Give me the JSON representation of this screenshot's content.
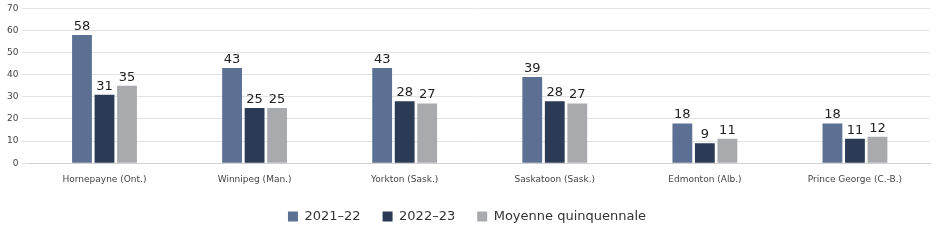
{
  "chart_data": {
    "type": "bar",
    "categories": [
      "Hornepayne (Ont.)",
      "Winnipeg (Man.)",
      "Yorkton (Sask.)",
      "Saskatoon (Sask.)",
      "Edmonton (Alb.)",
      "Prince George (C.-B.)"
    ],
    "series": [
      {
        "name": "2021–22",
        "color": "#5b7093",
        "values": [
          58,
          43,
          43,
          39,
          18,
          18
        ]
      },
      {
        "name": "2022–23",
        "color": "#2b3a55",
        "values": [
          31,
          25,
          28,
          28,
          9,
          11
        ]
      },
      {
        "name": "Moyenne quinquennale",
        "color": "#a9aaad",
        "values": [
          35,
          25,
          27,
          27,
          11,
          12
        ]
      }
    ],
    "ylim": [
      0,
      70
    ],
    "yticks": [
      0,
      10,
      20,
      30,
      40,
      50,
      60,
      70
    ],
    "grid": true,
    "legend": "bottom",
    "data_labels": true
  }
}
